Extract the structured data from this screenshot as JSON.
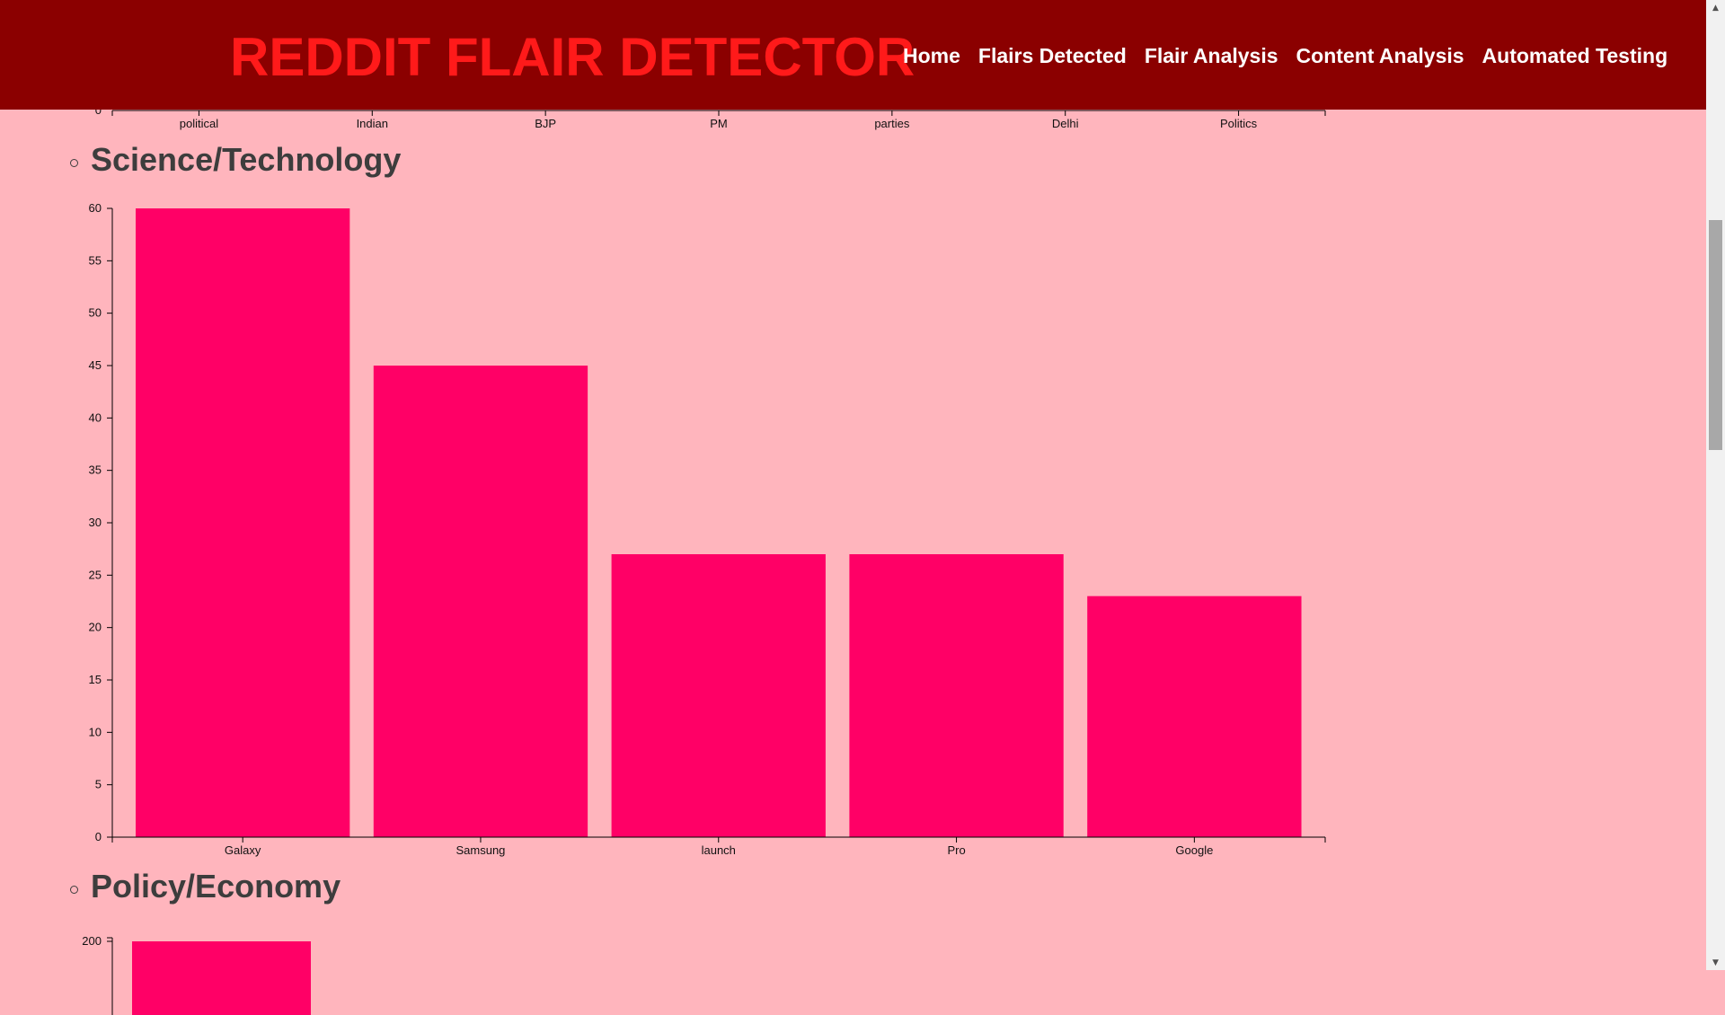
{
  "header": {
    "title": "REDDIT FLAIR DETECTOR",
    "nav": [
      "Home",
      "Flairs Detected",
      "Flair Analysis",
      "Content Analysis",
      "Automated Testing"
    ]
  },
  "colors": {
    "header_bg": "#8b0000",
    "title": "#ff1a1a",
    "page_bg": "#ffb5bd",
    "bar": "#ff0066"
  },
  "sections": [
    {
      "heading": "Science/Technology"
    },
    {
      "heading": "Policy/Economy"
    }
  ],
  "chart_data": [
    {
      "type": "bar",
      "title": "",
      "categories": [
        "political",
        "Indian",
        "BJP",
        "PM",
        "parties",
        "Delhi",
        "Politics"
      ],
      "y_ticks_visible": [
        0
      ],
      "partially_visible": true
    },
    {
      "type": "bar",
      "title": "Science/Technology",
      "categories": [
        "Galaxy",
        "Samsung",
        "launch",
        "Pro",
        "Google"
      ],
      "values": [
        60,
        45,
        27,
        27,
        23
      ],
      "ylim": [
        0,
        60
      ],
      "y_ticks": [
        0,
        5,
        10,
        15,
        20,
        25,
        30,
        35,
        40,
        45,
        50,
        55,
        60
      ],
      "grid": false,
      "legend": "none"
    },
    {
      "type": "bar",
      "title": "Policy/Economy",
      "y_ticks_visible": [
        200
      ],
      "partially_visible": true
    }
  ]
}
